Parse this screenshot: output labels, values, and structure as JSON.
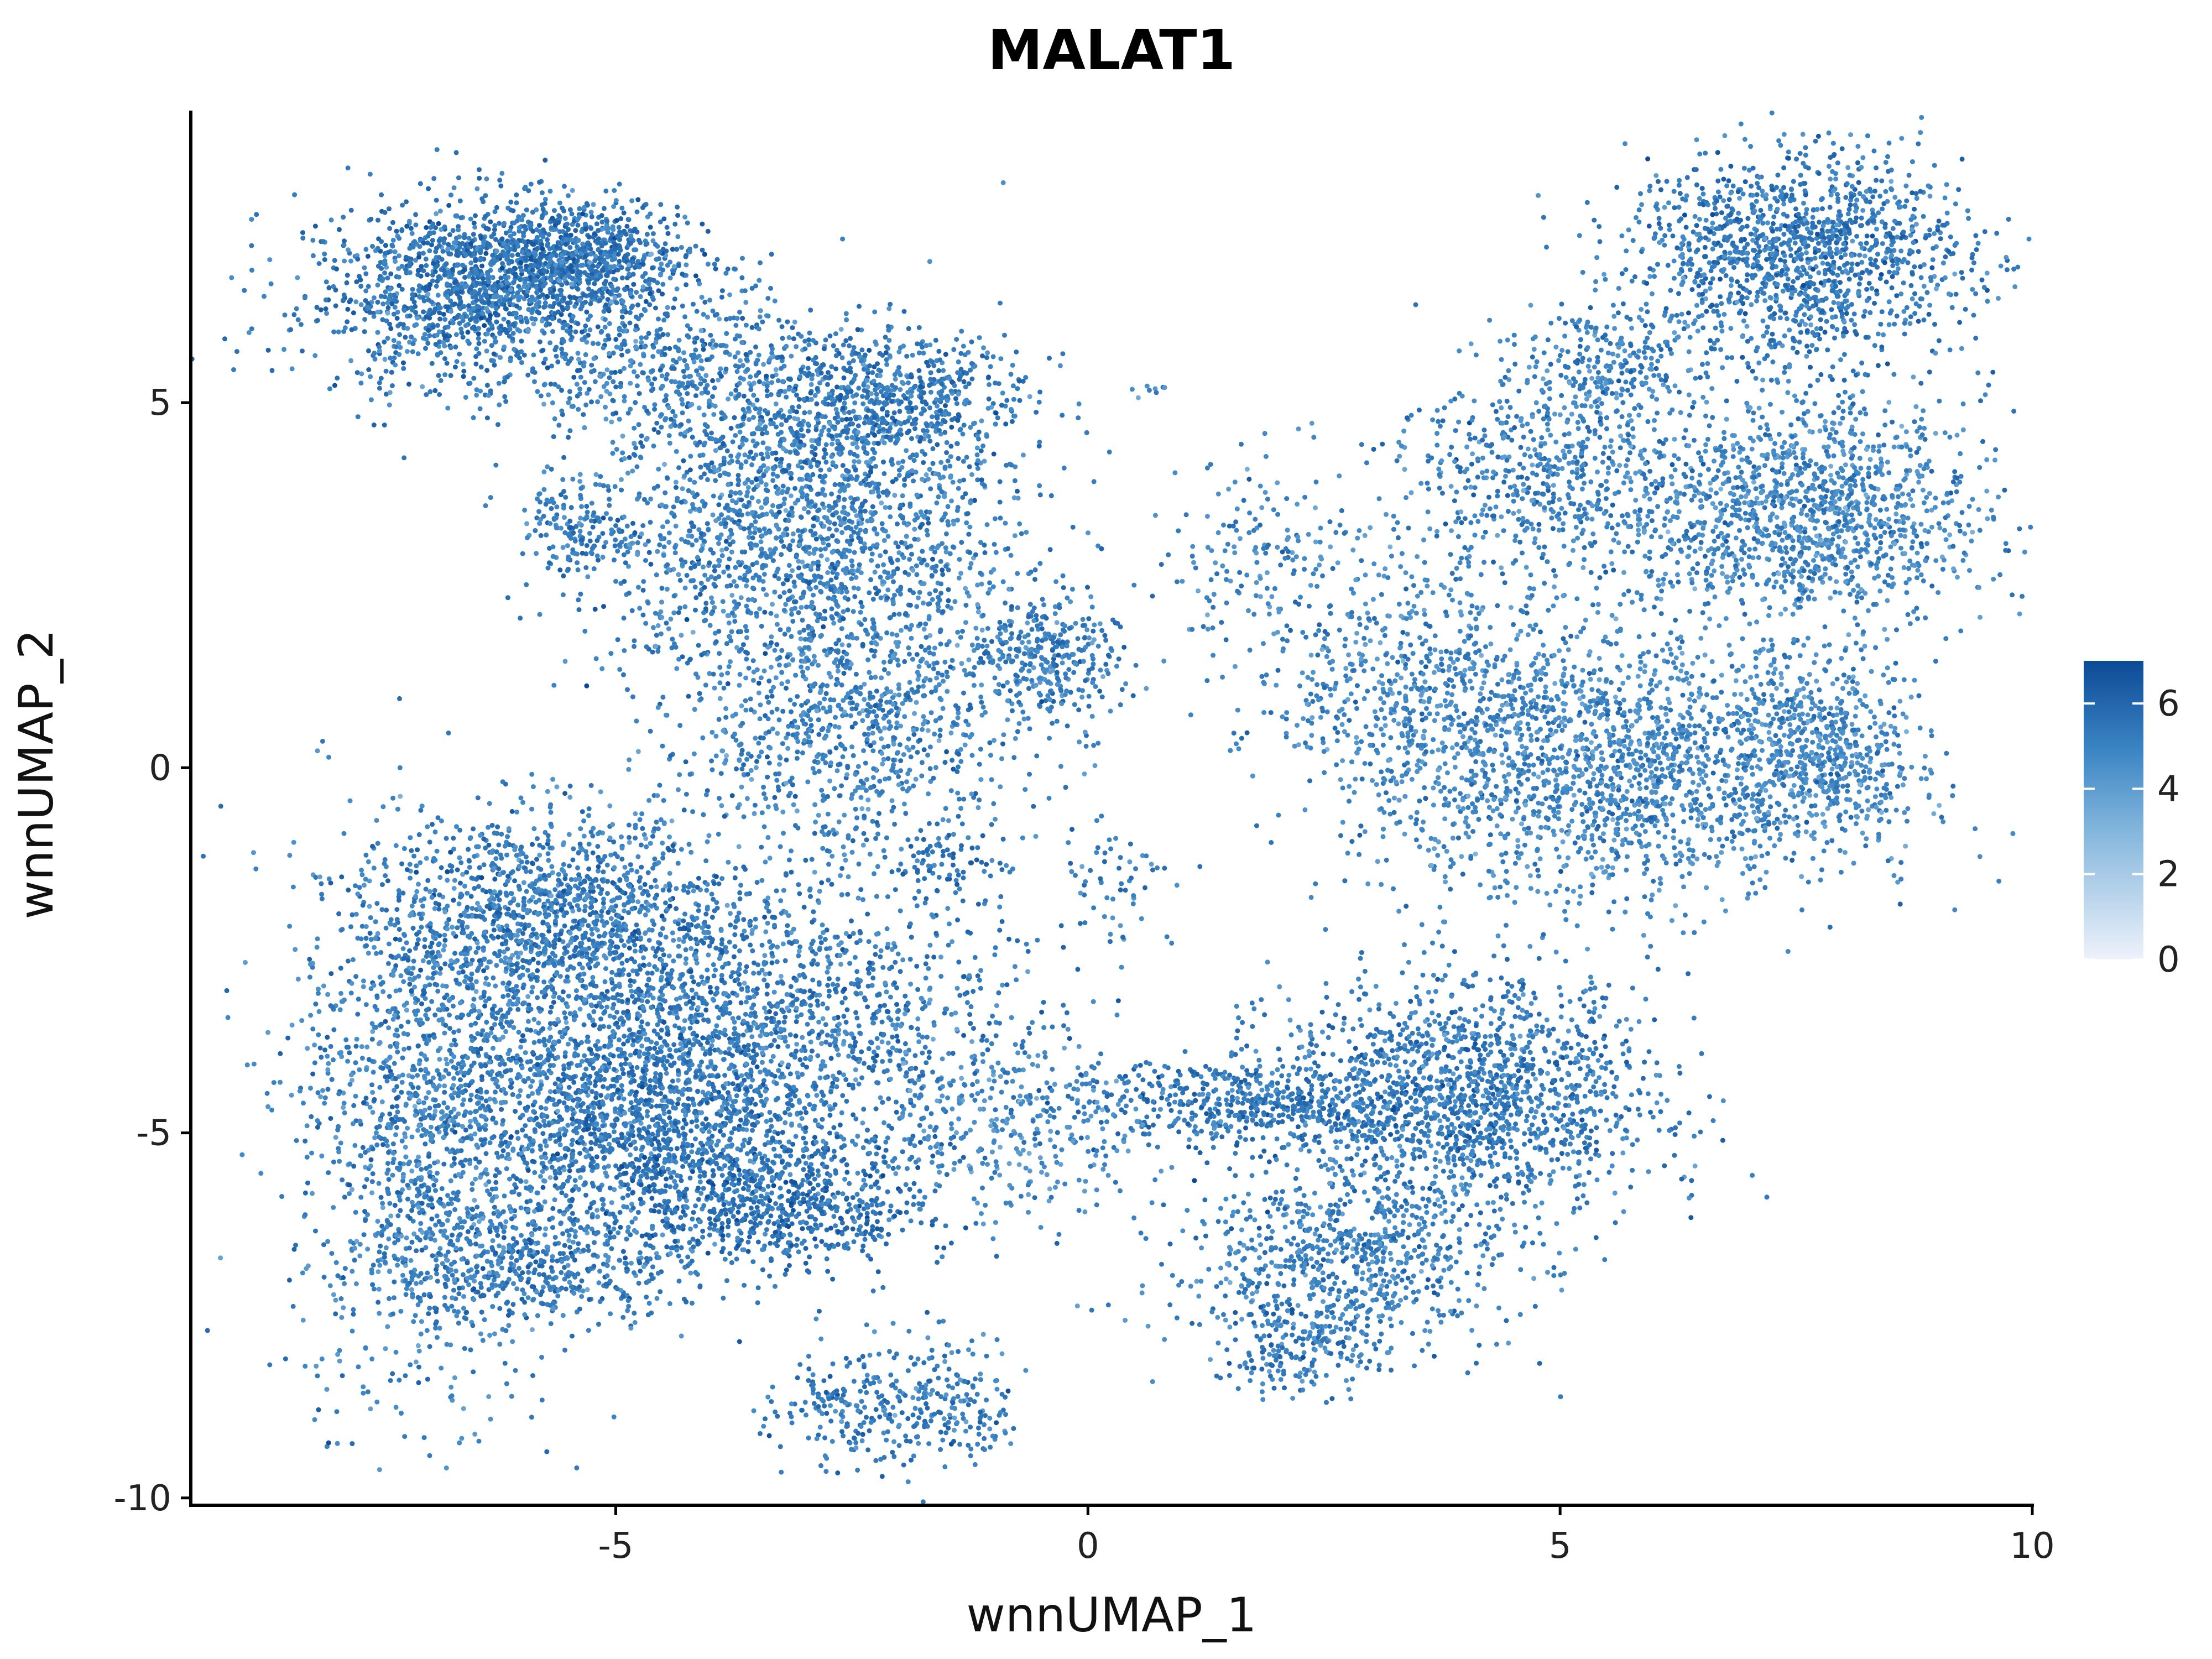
{
  "chart_data": {
    "type": "scatter",
    "title": "MALAT1",
    "xlabel": "wnnUMAP_1",
    "ylabel": "wnnUMAP_2",
    "xlim": [
      -9.5,
      10
    ],
    "ylim": [
      -10.1,
      9
    ],
    "x_ticks": [
      -5,
      0,
      5,
      10
    ],
    "x_tick_labels": [
      "-5",
      "0",
      "5",
      "10"
    ],
    "y_ticks": [
      -10,
      -5,
      0,
      5
    ],
    "y_tick_labels": [
      "-10",
      "-5",
      "0",
      "5"
    ],
    "grid": false,
    "legend": {
      "position": "right",
      "type": "colorbar",
      "range": [
        0,
        7
      ],
      "tick_values": [
        0,
        2,
        4,
        6
      ],
      "tick_labels": [
        "0",
        "2",
        "4",
        "6"
      ],
      "low_color": "#eef2fb",
      "high_color": "#0d4a96"
    },
    "point_color_main": "#2f72b8",
    "clusters": [
      {
        "center": [
          -6.5,
          6.5
        ],
        "spread": [
          0.9,
          0.6
        ],
        "value": 5.4,
        "density": 1.0
      },
      {
        "center": [
          -5.5,
          7.0
        ],
        "spread": [
          0.6,
          0.4
        ],
        "value": 5.5,
        "density": 0.8
      },
      {
        "center": [
          -4.3,
          5.5
        ],
        "spread": [
          0.8,
          0.6
        ],
        "value": 5.0,
        "density": 0.35
      },
      {
        "center": [
          -3.0,
          3.3
        ],
        "spread": [
          1.1,
          1.1
        ],
        "value": 5.0,
        "density": 0.95
      },
      {
        "center": [
          -2.2,
          5.0
        ],
        "spread": [
          0.8,
          0.5
        ],
        "value": 5.3,
        "density": 0.55
      },
      {
        "center": [
          -5.4,
          3.3
        ],
        "spread": [
          0.3,
          0.3
        ],
        "value": 5.2,
        "density": 0.25
      },
      {
        "center": [
          -2.5,
          0.5
        ],
        "spread": [
          1.0,
          0.8
        ],
        "value": 5.0,
        "density": 0.5
      },
      {
        "center": [
          -0.5,
          1.5
        ],
        "spread": [
          0.4,
          0.4
        ],
        "value": 5.1,
        "density": 0.45
      },
      {
        "center": [
          -1.5,
          -1.3
        ],
        "spread": [
          0.3,
          0.3
        ],
        "value": 5.6,
        "density": 0.15
      },
      {
        "center": [
          0.3,
          -1.5
        ],
        "spread": [
          0.3,
          0.5
        ],
        "value": 5.2,
        "density": 0.08
      },
      {
        "center": [
          0.7,
          5.2
        ],
        "spread": [
          0.15,
          0.1
        ],
        "value": 4.5,
        "density": 0.03
      },
      {
        "center": [
          2.0,
          3.0
        ],
        "spread": [
          0.7,
          0.6
        ],
        "value": 4.8,
        "density": 0.15
      },
      {
        "center": [
          7.5,
          7.0
        ],
        "spread": [
          0.9,
          0.7
        ],
        "value": 5.3,
        "density": 0.95
      },
      {
        "center": [
          5.5,
          5.5
        ],
        "spread": [
          0.6,
          0.4
        ],
        "value": 5.0,
        "density": 0.3
      },
      {
        "center": [
          4.8,
          4.0
        ],
        "spread": [
          0.8,
          0.6
        ],
        "value": 5.0,
        "density": 0.4
      },
      {
        "center": [
          7.5,
          3.5
        ],
        "spread": [
          1.0,
          0.8
        ],
        "value": 4.8,
        "density": 0.85
      },
      {
        "center": [
          5.5,
          0.0
        ],
        "spread": [
          1.3,
          0.9
        ],
        "value": 4.8,
        "density": 1.0
      },
      {
        "center": [
          7.8,
          0.2
        ],
        "spread": [
          0.5,
          0.6
        ],
        "value": 4.7,
        "density": 0.55
      },
      {
        "center": [
          3.5,
          1.3
        ],
        "spread": [
          0.9,
          0.8
        ],
        "value": 4.8,
        "density": 0.35
      },
      {
        "center": [
          -5.8,
          -2.0
        ],
        "spread": [
          1.0,
          0.7
        ],
        "value": 5.2,
        "density": 0.75
      },
      {
        "center": [
          -3.8,
          -3.8
        ],
        "spread": [
          1.5,
          1.2
        ],
        "value": 5.2,
        "density": 1.0
      },
      {
        "center": [
          -4.8,
          -5.0
        ],
        "spread": [
          0.8,
          0.7
        ],
        "value": 5.4,
        "density": 0.7
      },
      {
        "center": [
          -3.2,
          -6.0
        ],
        "spread": [
          0.7,
          0.4
        ],
        "value": 5.6,
        "density": 0.55
      },
      {
        "center": [
          -7.0,
          -5.0
        ],
        "spread": [
          0.7,
          1.8
        ],
        "value": 5.0,
        "density": 0.6
      },
      {
        "center": [
          -5.7,
          -6.8
        ],
        "spread": [
          0.8,
          0.4
        ],
        "value": 5.2,
        "density": 0.45
      },
      {
        "center": [
          -2.6,
          -8.8
        ],
        "spread": [
          0.4,
          0.35
        ],
        "value": 5.2,
        "density": 0.25
      },
      {
        "center": [
          -1.5,
          -8.7
        ],
        "spread": [
          0.4,
          0.5
        ],
        "value": 5.2,
        "density": 0.25
      },
      {
        "center": [
          4.0,
          -4.5
        ],
        "spread": [
          1.0,
          0.8
        ],
        "value": 5.2,
        "density": 0.95
      },
      {
        "center": [
          1.7,
          -4.6
        ],
        "spread": [
          1.0,
          0.3
        ],
        "value": 5.3,
        "density": 0.45
      },
      {
        "center": [
          2.7,
          -6.8
        ],
        "spread": [
          0.9,
          0.6
        ],
        "value": 5.0,
        "density": 0.55
      },
      {
        "center": [
          2.2,
          -8.0
        ],
        "spread": [
          0.4,
          0.3
        ],
        "value": 5.3,
        "density": 0.25
      },
      {
        "center": [
          -0.8,
          -5.0
        ],
        "spread": [
          0.7,
          0.6
        ],
        "value": 4.6,
        "density": 0.2
      }
    ]
  }
}
